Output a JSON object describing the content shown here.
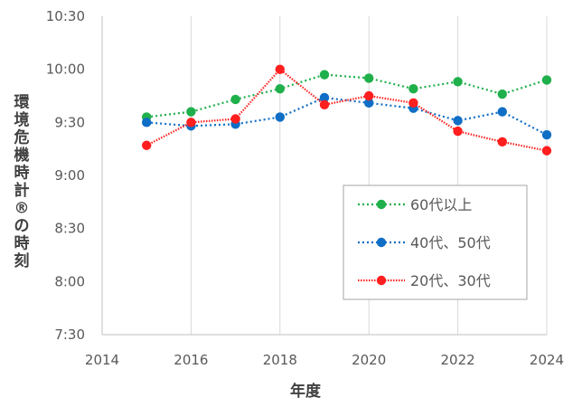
{
  "chart_data": {
    "type": "line",
    "xlabel": "年度",
    "ylabel": "環境危機時計®の時刻",
    "xlim": [
      2014,
      2024
    ],
    "x_ticks": [
      "2014",
      "2016",
      "2018",
      "2020",
      "2022",
      "2024"
    ],
    "x_tick_values": [
      2014,
      2016,
      2018,
      2020,
      2022,
      2024
    ],
    "ylim": [
      "7:30",
      "10:30"
    ],
    "y_ticks": [
      "7:30",
      "8:00",
      "8:30",
      "9:00",
      "9:30",
      "10:00",
      "10:30"
    ],
    "grid": "vertical",
    "legend_position": "bottom-right",
    "x": [
      2015,
      2016,
      2017,
      2018,
      2019,
      2020,
      2021,
      2022,
      2023,
      2024
    ],
    "series": [
      {
        "name": "60代以上",
        "color": "#1fb04b",
        "line_style": "dotted",
        "values": [
          "9:33",
          "9:36",
          "9:43",
          "9:49",
          "9:57",
          "9:55",
          "9:49",
          "9:53",
          "9:46",
          "9:54"
        ]
      },
      {
        "name": "40代、50代",
        "color": "#0f6ec5",
        "line_style": "dotted",
        "values": [
          "9:30",
          "9:28",
          "9:29",
          "9:33",
          "9:44",
          "9:41",
          "9:38",
          "9:31",
          "9:36",
          "9:23"
        ]
      },
      {
        "name": "20代、30代",
        "color": "#ff1f1f",
        "line_style": "dotted",
        "values": [
          "9:17",
          "9:30",
          "9:32",
          "10:00",
          "9:40",
          "9:45",
          "9:41",
          "9:25",
          "9:19",
          "9:14"
        ]
      }
    ]
  }
}
